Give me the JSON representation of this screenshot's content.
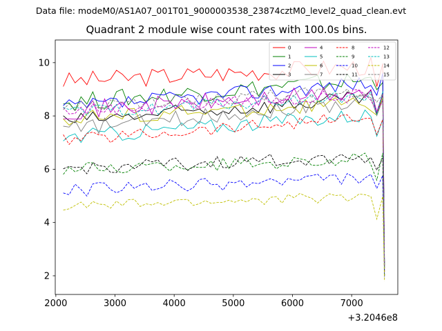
{
  "suptitle": "Data file: modeM0/AS1A07_001T01_9000003538_23874cztM0_level2_quad_clean.evt",
  "chart_data": {
    "type": "line",
    "title": "Quadrant 2 module wise count rates with 100.0s bins.",
    "xlabel": "",
    "ylabel": "",
    "x_offset_label": "+3.2046e8",
    "xlim": [
      1990,
      7780
    ],
    "ylim": [
      1.3,
      10.85
    ],
    "xticks": [
      2000,
      3000,
      4000,
      5000,
      6000,
      7000
    ],
    "yticks": [
      2,
      4,
      6,
      8,
      10
    ],
    "grid": false,
    "legend_position": "top-right",
    "legend_columns": 4,
    "series": [
      {
        "name": "0",
        "color": "#ff0000",
        "style": "solid",
        "base": 9.3,
        "jitter": 0.35,
        "rise": 0.6,
        "end": 2.4
      },
      {
        "name": "1",
        "color": "#008000",
        "style": "solid",
        "base": 8.5,
        "jitter": 0.35,
        "rise": 0.9,
        "end": 2.4
      },
      {
        "name": "2",
        "color": "#0000ff",
        "style": "solid",
        "base": 8.3,
        "jitter": 0.3,
        "rise": 1.0,
        "end": 2.5
      },
      {
        "name": "3",
        "color": "#000000",
        "style": "solid",
        "base": 7.8,
        "jitter": 0.3,
        "rise": 0.9,
        "end": 2.3
      },
      {
        "name": "4",
        "color": "#bf00bf",
        "style": "solid",
        "base": 8.2,
        "jitter": 0.35,
        "rise": 0.7,
        "end": 2.2
      },
      {
        "name": "5",
        "color": "#00bfbf",
        "style": "solid",
        "base": 7.2,
        "jitter": 0.3,
        "rise": 0.9,
        "end": 2.4
      },
      {
        "name": "6",
        "color": "#bfbf00",
        "style": "solid",
        "base": 7.9,
        "jitter": 0.3,
        "rise": 0.6,
        "end": 2.3
      },
      {
        "name": "7",
        "color": "#808080",
        "style": "solid",
        "base": 7.5,
        "jitter": 0.3,
        "rise": 1.1,
        "end": 2.2
      },
      {
        "name": "8",
        "color": "#ff0000",
        "style": "dashed",
        "base": 7.1,
        "jitter": 0.25,
        "rise": 0.9,
        "end": 2.1
      },
      {
        "name": "9",
        "color": "#008000",
        "style": "dashed",
        "base": 6.0,
        "jitter": 0.25,
        "rise": 0.4,
        "end": 2.0
      },
      {
        "name": "10",
        "color": "#0000ff",
        "style": "dashed",
        "base": 5.2,
        "jitter": 0.25,
        "rise": 0.5,
        "end": 1.9
      },
      {
        "name": "11",
        "color": "#000000",
        "style": "dashed",
        "base": 6.0,
        "jitter": 0.25,
        "rise": 0.5,
        "end": 2.0
      },
      {
        "name": "12",
        "color": "#bf00bf",
        "style": "dashed",
        "base": 8.2,
        "jitter": 0.25,
        "rise": 0.6,
        "end": 2.3
      },
      {
        "name": "13",
        "color": "#00bfbf",
        "style": "dashed",
        "base": 8.1,
        "jitter": 0.25,
        "rise": 0.7,
        "end": 2.3
      },
      {
        "name": "14",
        "color": "#bfbf00",
        "style": "dashed",
        "base": 4.6,
        "jitter": 0.2,
        "rise": 0.4,
        "end": 1.8
      },
      {
        "name": "15",
        "color": "#808080",
        "style": "dashed",
        "base": 8.3,
        "jitter": 0.25,
        "rise": 0.7,
        "end": 2.4
      }
    ],
    "x_start": 2125,
    "x_step": 100,
    "n_points": 55,
    "x_end": 7555
  }
}
